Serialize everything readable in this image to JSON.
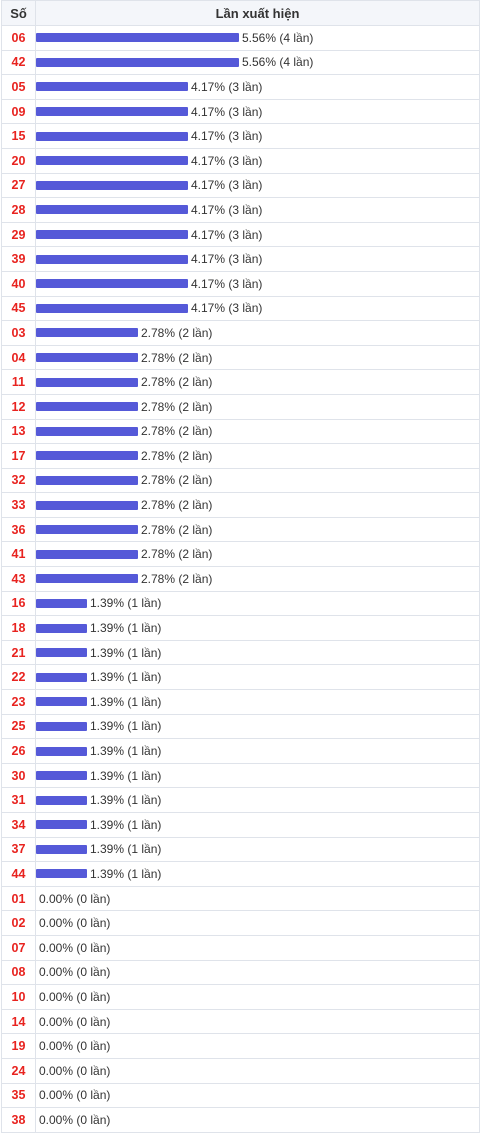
{
  "headers": {
    "number": "Số",
    "frequency": "Lần xuất hiện"
  },
  "colors": {
    "bar": "#5559d8",
    "number_text": "#e8231f",
    "border": "#dfe3ea",
    "header_bg": "#f4f6fa"
  },
  "chart_data": {
    "type": "bar",
    "orientation": "horizontal",
    "xlabel": "Lần xuất hiện",
    "ylabel": "Số",
    "categories": [
      "06",
      "42",
      "05",
      "09",
      "15",
      "20",
      "27",
      "28",
      "29",
      "39",
      "40",
      "45",
      "03",
      "04",
      "11",
      "12",
      "13",
      "17",
      "32",
      "33",
      "36",
      "41",
      "43",
      "16",
      "18",
      "21",
      "22",
      "23",
      "25",
      "26",
      "30",
      "31",
      "34",
      "37",
      "44",
      "01",
      "02",
      "07",
      "08",
      "10",
      "14",
      "19",
      "24",
      "35",
      "38"
    ],
    "percent": [
      5.56,
      5.56,
      4.17,
      4.17,
      4.17,
      4.17,
      4.17,
      4.17,
      4.17,
      4.17,
      4.17,
      4.17,
      2.78,
      2.78,
      2.78,
      2.78,
      2.78,
      2.78,
      2.78,
      2.78,
      2.78,
      2.78,
      2.78,
      1.39,
      1.39,
      1.39,
      1.39,
      1.39,
      1.39,
      1.39,
      1.39,
      1.39,
      1.39,
      1.39,
      1.39,
      0,
      0,
      0,
      0,
      0,
      0,
      0,
      0,
      0,
      0
    ],
    "counts": [
      4,
      4,
      3,
      3,
      3,
      3,
      3,
      3,
      3,
      3,
      3,
      3,
      2,
      2,
      2,
      2,
      2,
      2,
      2,
      2,
      2,
      2,
      2,
      1,
      1,
      1,
      1,
      1,
      1,
      1,
      1,
      1,
      1,
      1,
      1,
      0,
      0,
      0,
      0,
      0,
      0,
      0,
      0,
      0,
      0
    ],
    "labels": [
      "5.56% (4 lần)",
      "5.56% (4 lần)",
      "4.17% (3 lần)",
      "4.17% (3 lần)",
      "4.17% (3 lần)",
      "4.17% (3 lần)",
      "4.17% (3 lần)",
      "4.17% (3 lần)",
      "4.17% (3 lần)",
      "4.17% (3 lần)",
      "4.17% (3 lần)",
      "4.17% (3 lần)",
      "2.78% (2 lần)",
      "2.78% (2 lần)",
      "2.78% (2 lần)",
      "2.78% (2 lần)",
      "2.78% (2 lần)",
      "2.78% (2 lần)",
      "2.78% (2 lần)",
      "2.78% (2 lần)",
      "2.78% (2 lần)",
      "2.78% (2 lần)",
      "2.78% (2 lần)",
      "1.39% (1 lần)",
      "1.39% (1 lần)",
      "1.39% (1 lần)",
      "1.39% (1 lần)",
      "1.39% (1 lần)",
      "1.39% (1 lần)",
      "1.39% (1 lần)",
      "1.39% (1 lần)",
      "1.39% (1 lần)",
      "1.39% (1 lần)",
      "1.39% (1 lần)",
      "1.39% (1 lần)",
      "0.00% (0 lần)",
      "0.00% (0 lần)",
      "0.00% (0 lần)",
      "0.00% (0 lần)",
      "0.00% (0 lần)",
      "0.00% (0 lần)",
      "0.00% (0 lần)",
      "0.00% (0 lần)",
      "0.00% (0 lần)",
      "0.00% (0 lần)"
    ],
    "grid": true,
    "legend": "none"
  }
}
